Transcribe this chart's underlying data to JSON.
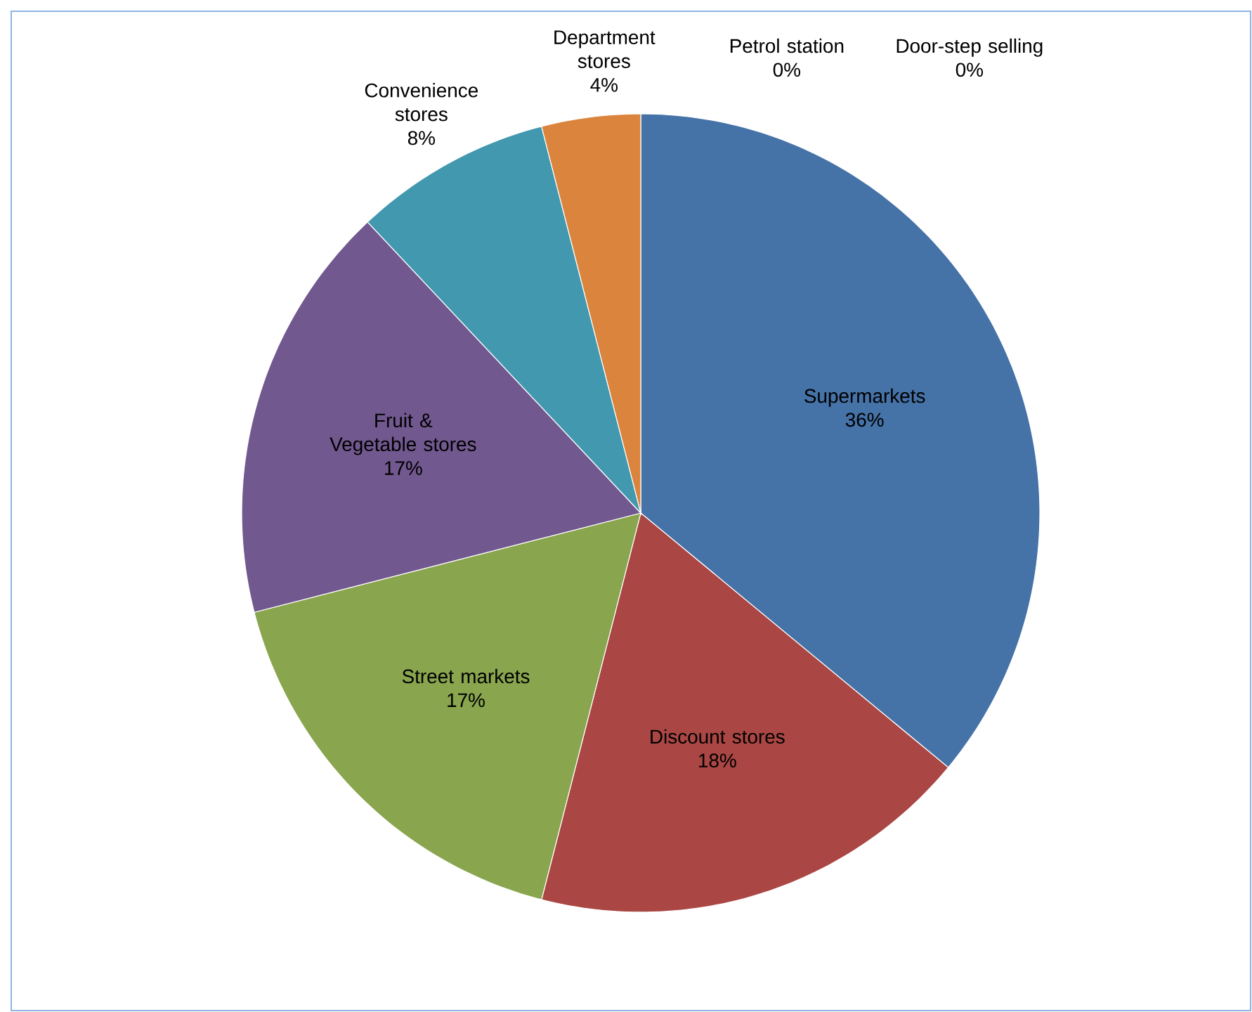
{
  "chart_data": {
    "type": "pie",
    "categories": [
      "Supermarkets",
      "Discount stores",
      "Street markets",
      "Fruit & Vegetable stores",
      "Convenience stores",
      "Department stores",
      "Petrol station",
      "Door-step selling"
    ],
    "values": [
      36,
      18,
      17,
      17,
      8,
      4,
      0,
      0
    ],
    "value_labels": [
      "36%",
      "18%",
      "17%",
      "17%",
      "8%",
      "4%",
      "0%",
      "0%"
    ],
    "colors": [
      "#4572a7",
      "#aa4643",
      "#89a54e",
      "#71588f",
      "#4198af",
      "#db843d",
      "#93a9cf",
      "#d19392"
    ]
  }
}
